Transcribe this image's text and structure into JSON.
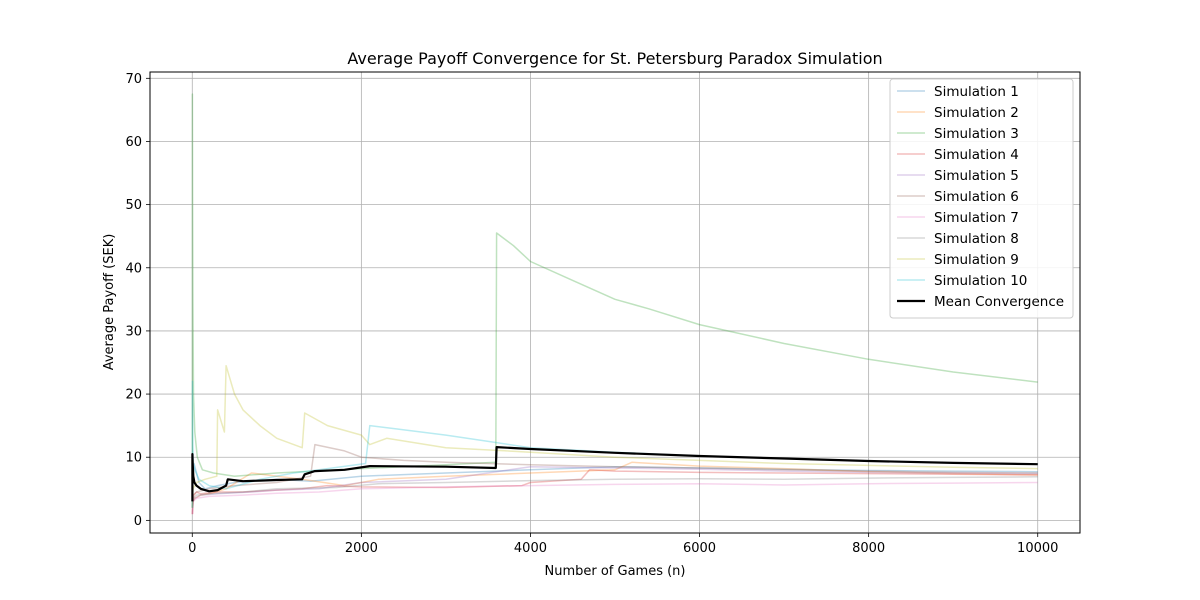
{
  "chart_data": {
    "type": "line",
    "title": "Average Payoff Convergence for St. Petersburg Paradox Simulation",
    "xlabel": "Number of Games (n)",
    "ylabel": "Average Payoff (SEK)",
    "xlim": [
      -500,
      10500
    ],
    "ylim": [
      -2,
      71
    ],
    "xticks": [
      0,
      2000,
      4000,
      6000,
      8000,
      10000
    ],
    "yticks": [
      0,
      10,
      20,
      30,
      40,
      50,
      60,
      70
    ],
    "grid": true,
    "legend_position": "top-right",
    "series": [
      {
        "name": "Simulation 1",
        "color": "#1f77b4",
        "opacity": 0.3,
        "points": [
          [
            1,
            2
          ],
          [
            5,
            4
          ],
          [
            10,
            7
          ],
          [
            20,
            9
          ],
          [
            40,
            8
          ],
          [
            80,
            6
          ],
          [
            150,
            5
          ],
          [
            300,
            5.5
          ],
          [
            500,
            6
          ],
          [
            800,
            6.3
          ],
          [
            1000,
            6.5
          ],
          [
            1400,
            6.2
          ],
          [
            2000,
            7
          ],
          [
            3000,
            7.5
          ],
          [
            4000,
            8
          ],
          [
            5000,
            8.5
          ],
          [
            6000,
            8.3
          ],
          [
            7000,
            8.1
          ],
          [
            8000,
            7.9
          ],
          [
            9000,
            7.8
          ],
          [
            10000,
            7.7
          ]
        ]
      },
      {
        "name": "Simulation 2",
        "color": "#ff7f0e",
        "opacity": 0.3,
        "points": [
          [
            1,
            1
          ],
          [
            5,
            2.5
          ],
          [
            10,
            3
          ],
          [
            30,
            3.5
          ],
          [
            100,
            4
          ],
          [
            200,
            4.2
          ],
          [
            400,
            5
          ],
          [
            700,
            7.5
          ],
          [
            1000,
            7
          ],
          [
            1300,
            6.5
          ],
          [
            1800,
            5.5
          ],
          [
            2000,
            6
          ],
          [
            2200,
            6.5
          ],
          [
            3000,
            7
          ],
          [
            4000,
            7.5
          ],
          [
            5000,
            8
          ],
          [
            5200,
            9.2
          ],
          [
            6000,
            8.6
          ],
          [
            7000,
            8.2
          ],
          [
            8000,
            7.7
          ],
          [
            9000,
            7.4
          ],
          [
            10000,
            7.2
          ]
        ]
      },
      {
        "name": "Simulation 3",
        "color": "#2ca02c",
        "opacity": 0.3,
        "points": [
          [
            1,
            2
          ],
          [
            2,
            67.5
          ],
          [
            4,
            50
          ],
          [
            8,
            35
          ],
          [
            15,
            20
          ],
          [
            30,
            14
          ],
          [
            60,
            10
          ],
          [
            120,
            8
          ],
          [
            250,
            7.5
          ],
          [
            500,
            7
          ],
          [
            1000,
            7.5
          ],
          [
            2000,
            8.2
          ],
          [
            3000,
            8.8
          ],
          [
            3590,
            9.2
          ],
          [
            3600,
            45.5
          ],
          [
            3800,
            43.5
          ],
          [
            4000,
            41
          ],
          [
            4500,
            38
          ],
          [
            5000,
            35
          ],
          [
            5400,
            33.5
          ],
          [
            6000,
            31
          ],
          [
            7000,
            28
          ],
          [
            8000,
            25.5
          ],
          [
            9000,
            23.5
          ],
          [
            10000,
            21.9
          ]
        ]
      },
      {
        "name": "Simulation 4",
        "color": "#d62728",
        "opacity": 0.3,
        "points": [
          [
            1,
            1
          ],
          [
            5,
            2
          ],
          [
            10,
            3
          ],
          [
            20,
            4
          ],
          [
            50,
            4.5
          ],
          [
            100,
            4.2
          ],
          [
            300,
            4.5
          ],
          [
            600,
            4.5
          ],
          [
            1000,
            4.8
          ],
          [
            1300,
            5
          ],
          [
            1600,
            5.5
          ],
          [
            2000,
            5.3
          ],
          [
            3000,
            5.2
          ],
          [
            3900,
            5.5
          ],
          [
            4000,
            6
          ],
          [
            4600,
            6.5
          ],
          [
            4700,
            8
          ],
          [
            5000,
            7.8
          ],
          [
            6000,
            7.6
          ],
          [
            7000,
            7.5
          ],
          [
            8000,
            7.4
          ],
          [
            9000,
            7.3
          ],
          [
            10000,
            7.2
          ]
        ]
      },
      {
        "name": "Simulation 5",
        "color": "#9467bd",
        "opacity": 0.3,
        "points": [
          [
            1,
            1
          ],
          [
            5,
            2
          ],
          [
            10,
            3
          ],
          [
            30,
            3.5
          ],
          [
            100,
            4
          ],
          [
            300,
            4.2
          ],
          [
            700,
            4.5
          ],
          [
            1000,
            4.8
          ],
          [
            1500,
            5
          ],
          [
            2000,
            6
          ],
          [
            3000,
            6.5
          ],
          [
            4000,
            8.5
          ],
          [
            5000,
            8.3
          ],
          [
            6000,
            8.1
          ],
          [
            7000,
            7.8
          ],
          [
            8000,
            7.6
          ],
          [
            9000,
            7.5
          ],
          [
            10000,
            7.4
          ]
        ]
      },
      {
        "name": "Simulation 6",
        "color": "#8c564b",
        "opacity": 0.3,
        "points": [
          [
            1,
            2
          ],
          [
            5,
            3
          ],
          [
            10,
            4
          ],
          [
            50,
            4.5
          ],
          [
            200,
            5
          ],
          [
            500,
            5.5
          ],
          [
            1000,
            6
          ],
          [
            1400,
            7
          ],
          [
            1450,
            12
          ],
          [
            1800,
            11
          ],
          [
            2000,
            10
          ],
          [
            2500,
            9.5
          ],
          [
            3000,
            9.2
          ],
          [
            4000,
            8.8
          ],
          [
            5000,
            8.5
          ],
          [
            6000,
            8.3
          ],
          [
            7000,
            8
          ],
          [
            8000,
            7.8
          ],
          [
            9000,
            7.6
          ],
          [
            10000,
            7.5
          ]
        ]
      },
      {
        "name": "Simulation 7",
        "color": "#e377c2",
        "opacity": 0.3,
        "points": [
          [
            1,
            1
          ],
          [
            5,
            2
          ],
          [
            10,
            3
          ],
          [
            50,
            3.5
          ],
          [
            200,
            3.8
          ],
          [
            600,
            4
          ],
          [
            1000,
            4.3
          ],
          [
            1500,
            4.5
          ],
          [
            2000,
            5
          ],
          [
            3000,
            5.3
          ],
          [
            4000,
            5.5
          ],
          [
            5000,
            5.7
          ],
          [
            6000,
            5.8
          ],
          [
            7000,
            5.6
          ],
          [
            8000,
            5.8
          ],
          [
            9000,
            5.9
          ],
          [
            10000,
            6
          ]
        ]
      },
      {
        "name": "Simulation 8",
        "color": "#7f7f7f",
        "opacity": 0.3,
        "points": [
          [
            1,
            2
          ],
          [
            5,
            3
          ],
          [
            10,
            3.5
          ],
          [
            50,
            4
          ],
          [
            200,
            4.2
          ],
          [
            600,
            4.5
          ],
          [
            1000,
            5
          ],
          [
            1700,
            5.2
          ],
          [
            2200,
            5.8
          ],
          [
            3000,
            6
          ],
          [
            4000,
            6.3
          ],
          [
            5000,
            6.5
          ],
          [
            6000,
            6.6
          ],
          [
            7000,
            6.5
          ],
          [
            8000,
            6.7
          ],
          [
            9000,
            6.8
          ],
          [
            10000,
            6.9
          ]
        ]
      },
      {
        "name": "Simulation 9",
        "color": "#bcbd22",
        "opacity": 0.3,
        "points": [
          [
            1,
            2
          ],
          [
            5,
            4
          ],
          [
            10,
            5
          ],
          [
            50,
            6
          ],
          [
            150,
            6.5
          ],
          [
            290,
            7
          ],
          [
            300,
            17.5
          ],
          [
            380,
            14
          ],
          [
            400,
            24.5
          ],
          [
            500,
            20
          ],
          [
            600,
            17.5
          ],
          [
            800,
            15
          ],
          [
            1000,
            13
          ],
          [
            1300,
            11.5
          ],
          [
            1330,
            17
          ],
          [
            1600,
            15
          ],
          [
            2000,
            13.5
          ],
          [
            2100,
            12
          ],
          [
            2300,
            13
          ],
          [
            3000,
            11.5
          ],
          [
            4000,
            10.8
          ],
          [
            5000,
            10
          ],
          [
            6000,
            9.5
          ],
          [
            7000,
            9
          ],
          [
            8000,
            8.7
          ],
          [
            9000,
            8.4
          ],
          [
            10000,
            8.2
          ]
        ]
      },
      {
        "name": "Simulation 10",
        "color": "#17becf",
        "opacity": 0.3,
        "points": [
          [
            1,
            2
          ],
          [
            3,
            22
          ],
          [
            6,
            12
          ],
          [
            12,
            9
          ],
          [
            30,
            8
          ],
          [
            80,
            6.5
          ],
          [
            200,
            5.5
          ],
          [
            400,
            5
          ],
          [
            800,
            6.5
          ],
          [
            1200,
            7.5
          ],
          [
            1500,
            8
          ],
          [
            2050,
            9
          ],
          [
            2100,
            15
          ],
          [
            2400,
            14.5
          ],
          [
            3000,
            13.5
          ],
          [
            3500,
            12.5
          ],
          [
            4000,
            11.5
          ],
          [
            5000,
            10.8
          ],
          [
            6000,
            10.2
          ],
          [
            7000,
            9.8
          ],
          [
            8000,
            9.4
          ],
          [
            9000,
            9.1
          ],
          [
            10000,
            8.9
          ]
        ]
      },
      {
        "name": "Mean Convergence",
        "color": "#000000",
        "opacity": 1,
        "width": 2.2,
        "points": [
          [
            1,
            3
          ],
          [
            2,
            10.5
          ],
          [
            5,
            9
          ],
          [
            12,
            7
          ],
          [
            25,
            6
          ],
          [
            50,
            5.5
          ],
          [
            100,
            5
          ],
          [
            200,
            4.6
          ],
          [
            300,
            4.8
          ],
          [
            400,
            5.5
          ],
          [
            420,
            6.5
          ],
          [
            600,
            6.2
          ],
          [
            800,
            6.3
          ],
          [
            1000,
            6.4
          ],
          [
            1300,
            6.5
          ],
          [
            1330,
            7.3
          ],
          [
            1450,
            7.8
          ],
          [
            1800,
            8
          ],
          [
            2100,
            8.6
          ],
          [
            3000,
            8.5
          ],
          [
            3590,
            8.3
          ],
          [
            3600,
            11.6
          ],
          [
            4000,
            11.3
          ],
          [
            5000,
            10.7
          ],
          [
            6000,
            10.2
          ],
          [
            7000,
            9.8
          ],
          [
            8000,
            9.4
          ],
          [
            9000,
            9.1
          ],
          [
            10000,
            8.9
          ]
        ]
      }
    ]
  }
}
